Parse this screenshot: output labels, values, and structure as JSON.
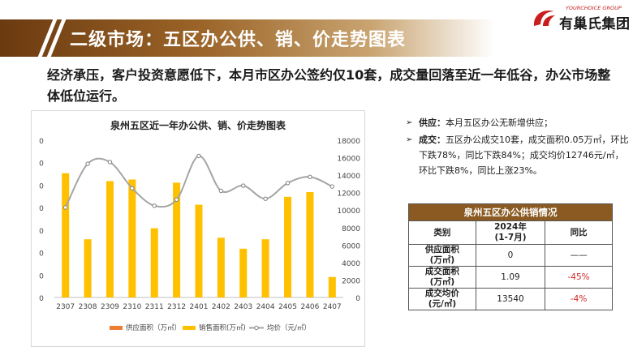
{
  "header": {
    "title": "二级市场：五区办公供、销、价走势图表"
  },
  "logo": {
    "en": "YOURCHOICE GROUP",
    "cn": "有巢氏集团"
  },
  "headline": "经济承压，客户投资意愿低下，本月市区办公签约仅10套，成交量回落至近一年低谷，办公市场整体低位运行。",
  "bullets": [
    {
      "label": "供应：",
      "text": "本月五区办公无新增供应；"
    },
    {
      "label": "成交：",
      "text": "五区办公成交10套，成交面积0.05万㎡，环比下跌78%，同比下跌84%；成交均价12746元/㎡，环比下跌8%，同比上涨23%。"
    }
  ],
  "table": {
    "caption": "泉州五区办公供销情况",
    "headers": [
      "类别",
      "2024年\n(1-7月)",
      "同比"
    ],
    "rows": [
      {
        "label": "供应面积\n(万㎡)",
        "value": "0",
        "yoy": "——"
      },
      {
        "label": "成交面积\n(万㎡)",
        "value": "1.09",
        "yoy": "-45%"
      },
      {
        "label": "成交均价\n(元/㎡)",
        "value": "13540",
        "yoy": "-4%"
      }
    ]
  },
  "colors": {
    "supply": "#ed7d31",
    "sales": "#ffc000",
    "price": "#a5a5a5",
    "red": "#d42a2a",
    "brown": "#8a5a22"
  },
  "chart_data": {
    "type": "bar",
    "title": "泉州五区近一年办公供、销、价走势图表",
    "categories": [
      "2307",
      "2308",
      "2309",
      "2310",
      "2311",
      "2312",
      "2401",
      "2402",
      "2403",
      "2404",
      "2405",
      "2406",
      "2407"
    ],
    "left_ticks": [
      "0",
      "0",
      "0",
      "0",
      "0",
      "0",
      "0",
      "0"
    ],
    "right_ticks": [
      "0",
      "2000",
      "4000",
      "6000",
      "8000",
      "10000",
      "12000",
      "14000",
      "16000",
      "18000"
    ],
    "right_ylim": [
      0,
      18000
    ],
    "series": [
      {
        "name": "供应面积（万㎡）",
        "type": "bar",
        "values": [
          0,
          0,
          0,
          0,
          0,
          0,
          0,
          0,
          0,
          0,
          0,
          0,
          0
        ]
      },
      {
        "name": "销售面积(万㎡)",
        "type": "bar",
        "values_fraction_of_axis": [
          0.79,
          0.37,
          0.74,
          0.75,
          0.44,
          0.73,
          0.59,
          0.38,
          0.31,
          0.37,
          0.64,
          0.67,
          0.13
        ]
      },
      {
        "name": "均价（元/㎡）",
        "type": "line",
        "axis": "right",
        "values": [
          10300,
          15300,
          15500,
          12500,
          10500,
          11200,
          16200,
          12200,
          12800,
          11300,
          13100,
          13800,
          12700
        ]
      }
    ],
    "legend_position": "bottom",
    "grid": false
  }
}
